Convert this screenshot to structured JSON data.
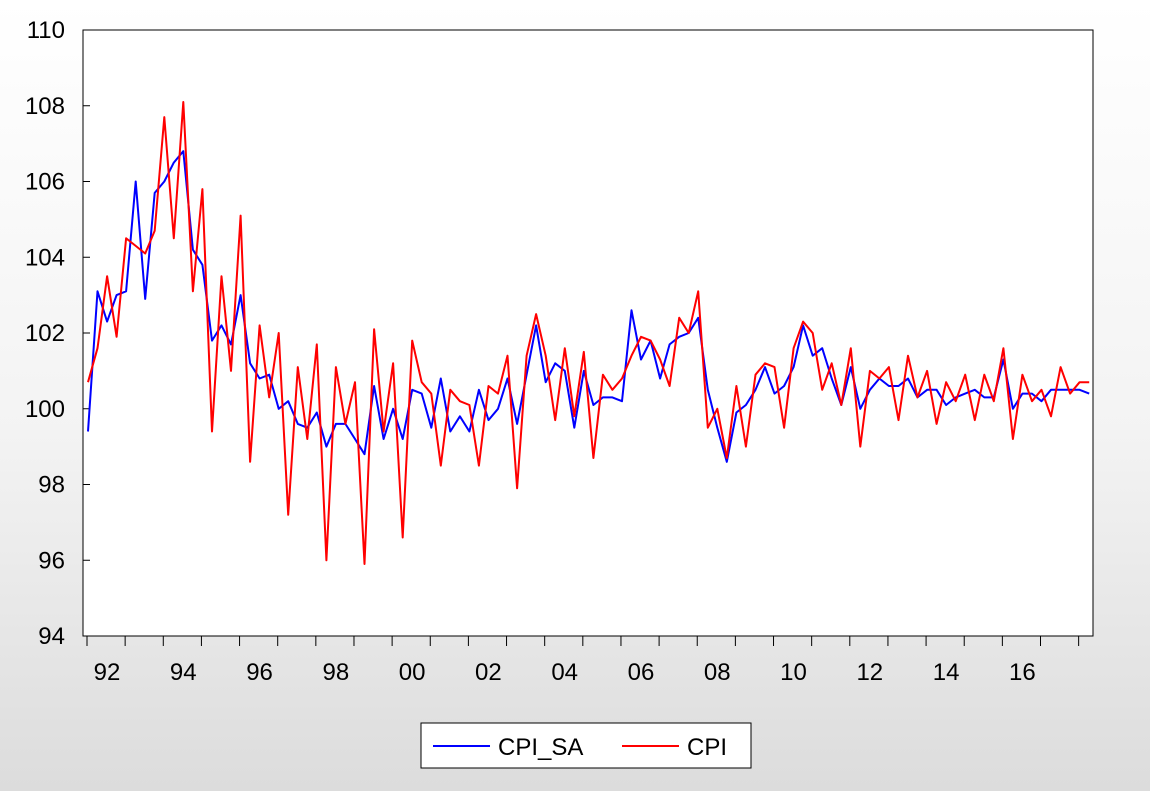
{
  "chart_data": {
    "type": "line",
    "title": "",
    "xlabel": "",
    "ylabel": "",
    "ylim": [
      94,
      110
    ],
    "yticks": [
      "94",
      "96",
      "98",
      "100",
      "102",
      "104",
      "106",
      "108",
      "110"
    ],
    "xticks": [
      "92",
      "94",
      "96",
      "98",
      "00",
      "02",
      "04",
      "06",
      "08",
      "10",
      "12",
      "14",
      "16"
    ],
    "frequency": "quarterly",
    "start": "1992Q1",
    "end": "2017Q4",
    "grid": false,
    "legend_position": "bottom",
    "series": [
      {
        "name": "CPI_SA",
        "color": "#0000ff",
        "values": [
          99.4,
          103.1,
          102.3,
          103.0,
          103.1,
          106.0,
          102.9,
          105.7,
          106.0,
          106.5,
          106.8,
          104.2,
          103.8,
          101.8,
          102.2,
          101.7,
          103.0,
          101.2,
          100.8,
          100.9,
          100.0,
          100.2,
          99.6,
          99.5,
          99.9,
          99.0,
          99.6,
          99.6,
          99.2,
          98.8,
          100.6,
          99.2,
          100.0,
          99.2,
          100.5,
          100.4,
          99.5,
          100.8,
          99.4,
          99.8,
          99.4,
          100.5,
          99.7,
          100.0,
          100.8,
          99.6,
          100.9,
          102.2,
          100.7,
          101.2,
          101.0,
          99.5,
          101.0,
          100.1,
          100.3,
          100.3,
          100.2,
          102.6,
          101.3,
          101.8,
          100.8,
          101.7,
          101.9,
          102.0,
          102.4,
          100.5,
          99.5,
          98.6,
          99.9,
          100.1,
          100.5,
          101.1,
          100.4,
          100.6,
          101.1,
          102.2,
          101.4,
          101.6,
          100.8,
          100.1,
          101.1,
          100.0,
          100.5,
          100.8,
          100.6,
          100.6,
          100.8,
          100.3,
          100.5,
          100.5,
          100.1,
          100.3,
          100.4,
          100.5,
          100.3,
          100.3,
          101.3,
          100.0,
          100.4,
          100.4,
          100.2,
          100.5,
          100.5,
          100.5,
          100.5,
          100.4
        ]
      },
      {
        "name": "CPI",
        "color": "#ff0000",
        "values": [
          100.7,
          101.6,
          103.5,
          101.9,
          104.5,
          104.3,
          104.1,
          104.7,
          107.7,
          104.5,
          108.1,
          103.1,
          105.8,
          99.4,
          103.5,
          101.0,
          105.1,
          98.6,
          102.2,
          100.3,
          102.0,
          97.2,
          101.1,
          99.2,
          101.7,
          96.0,
          101.1,
          99.6,
          100.7,
          95.9,
          102.1,
          99.4,
          101.2,
          96.6,
          101.8,
          100.7,
          100.4,
          98.5,
          100.5,
          100.2,
          100.1,
          98.5,
          100.6,
          100.4,
          101.4,
          97.9,
          101.4,
          102.5,
          101.4,
          99.7,
          101.6,
          99.8,
          101.5,
          98.7,
          100.9,
          100.5,
          100.8,
          101.4,
          101.9,
          101.8,
          101.3,
          100.6,
          102.4,
          102.0,
          103.1,
          99.5,
          100.0,
          98.7,
          100.6,
          99.0,
          100.9,
          101.2,
          101.1,
          99.5,
          101.6,
          102.3,
          102.0,
          100.5,
          101.2,
          100.1,
          101.6,
          99.0,
          101.0,
          100.8,
          101.1,
          99.7,
          101.4,
          100.3,
          101.0,
          99.6,
          100.7,
          100.2,
          100.9,
          99.7,
          100.9,
          100.2,
          101.6,
          99.2,
          100.9,
          100.2,
          100.5,
          99.8,
          101.1,
          100.4,
          100.7,
          100.7
        ]
      }
    ]
  }
}
